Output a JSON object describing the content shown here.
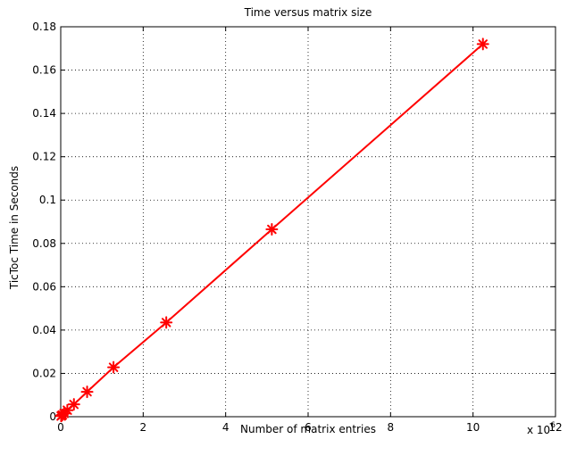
{
  "chart_data": {
    "type": "line",
    "title": "Time versus matrix size",
    "xlabel": "Number of matrix entries",
    "ylabel": "TicToc Time in Seconds",
    "x_exponent_label": "x 10",
    "x_exponent_power": "6",
    "xlim": [
      0,
      12
    ],
    "ylim": [
      0,
      0.18
    ],
    "x_ticks": [
      0,
      2,
      4,
      6,
      8,
      10,
      12
    ],
    "x_tick_labels": [
      "0",
      "2",
      "4",
      "6",
      "8",
      "10",
      "12"
    ],
    "y_ticks": [
      0,
      0.02,
      0.04,
      0.06,
      0.08,
      0.1,
      0.12,
      0.14,
      0.16,
      0.18
    ],
    "y_tick_labels": [
      "0",
      "0.02",
      "0.04",
      "0.06",
      "0.08",
      "0.1",
      "0.12",
      "0.14",
      "0.16",
      "0.18"
    ],
    "grid": true,
    "series": [
      {
        "color": "#ff0000",
        "marker": "asterisk",
        "points": [
          {
            "x": 0.01,
            "y": 0.0003
          },
          {
            "x": 0.02,
            "y": 0.0005
          },
          {
            "x": 0.04,
            "y": 0.0008
          },
          {
            "x": 0.08,
            "y": 0.0015
          },
          {
            "x": 0.16,
            "y": 0.003
          },
          {
            "x": 0.32,
            "y": 0.0057
          },
          {
            "x": 0.64,
            "y": 0.0115
          },
          {
            "x": 1.28,
            "y": 0.0228
          },
          {
            "x": 2.56,
            "y": 0.0435
          },
          {
            "x": 5.12,
            "y": 0.0865
          },
          {
            "x": 10.24,
            "y": 0.172
          }
        ]
      }
    ]
  }
}
